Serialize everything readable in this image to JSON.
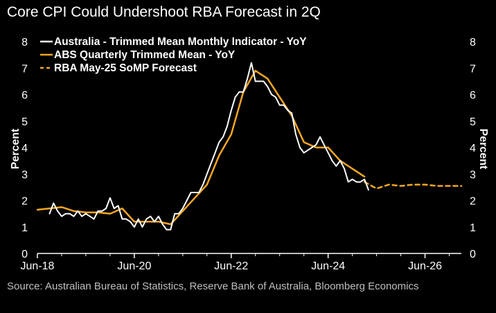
{
  "header": {
    "title": "Core CPI Could Undershoot RBA Forecast in 2Q"
  },
  "footer": {
    "source": "Source: Australian Bureau of Statistics, Reserve Bank of Australia, Bloomberg Economics"
  },
  "colors": {
    "background": "#000000",
    "monthly": "#ffffff",
    "quarterly": "#f5a623",
    "forecast": "#f5a623",
    "source_text": "#bfbfbf"
  },
  "chart_data": {
    "type": "line",
    "title": "Core CPI Could Undershoot RBA Forecast in 2Q",
    "ylabel_left": "Percent",
    "ylabel_right": "Percent",
    "xlim": [
      "2018-06",
      "2027-03"
    ],
    "ylim": [
      0,
      8
    ],
    "yticks": [
      0,
      1,
      2,
      3,
      4,
      5,
      6,
      7,
      8
    ],
    "xticks": [
      {
        "date": "2018-06",
        "label": "Jun-18"
      },
      {
        "date": "2020-06",
        "label": "Jun-20"
      },
      {
        "date": "2022-06",
        "label": "Jun-22"
      },
      {
        "date": "2024-06",
        "label": "Jun-24"
      },
      {
        "date": "2026-06",
        "label": "Jun-26"
      }
    ],
    "grid": false,
    "legend_position": "top-left",
    "series": [
      {
        "name": "Australia - Trimmed Mean Monthly Indicator - YoY",
        "style": "solid",
        "color": "#ffffff",
        "x": [
          "2018-09",
          "2018-10",
          "2018-11",
          "2018-12",
          "2019-01",
          "2019-02",
          "2019-03",
          "2019-04",
          "2019-05",
          "2019-06",
          "2019-07",
          "2019-08",
          "2019-09",
          "2019-10",
          "2019-11",
          "2019-12",
          "2020-01",
          "2020-02",
          "2020-03",
          "2020-04",
          "2020-05",
          "2020-06",
          "2020-07",
          "2020-08",
          "2020-09",
          "2020-10",
          "2020-11",
          "2020-12",
          "2021-01",
          "2021-02",
          "2021-03",
          "2021-04",
          "2021-05",
          "2021-06",
          "2021-07",
          "2021-08",
          "2021-09",
          "2021-10",
          "2021-11",
          "2021-12",
          "2022-01",
          "2022-02",
          "2022-03",
          "2022-04",
          "2022-05",
          "2022-06",
          "2022-07",
          "2022-08",
          "2022-09",
          "2022-10",
          "2022-11",
          "2022-12",
          "2023-01",
          "2023-02",
          "2023-03",
          "2023-04",
          "2023-05",
          "2023-06",
          "2023-07",
          "2023-08",
          "2023-09",
          "2023-10",
          "2023-11",
          "2023-12",
          "2024-01",
          "2024-02",
          "2024-03",
          "2024-04",
          "2024-05",
          "2024-06",
          "2024-07",
          "2024-08",
          "2024-09",
          "2024-10",
          "2024-11",
          "2024-12",
          "2025-01",
          "2025-02",
          "2025-03",
          "2025-04"
        ],
        "values": [
          1.5,
          1.9,
          1.6,
          1.4,
          1.5,
          1.5,
          1.4,
          1.6,
          1.4,
          1.5,
          1.4,
          1.3,
          1.6,
          1.6,
          1.7,
          2.1,
          1.7,
          1.8,
          1.3,
          1.3,
          1.2,
          1.0,
          1.3,
          1.0,
          1.3,
          1.4,
          1.2,
          1.4,
          1.1,
          0.9,
          0.9,
          1.5,
          1.5,
          1.7,
          2.0,
          2.3,
          2.3,
          2.3,
          2.6,
          3.0,
          3.4,
          3.8,
          4.2,
          4.4,
          4.8,
          5.4,
          5.9,
          6.1,
          6.1,
          6.6,
          7.2,
          6.5,
          6.5,
          6.5,
          6.3,
          6.0,
          5.9,
          5.6,
          5.6,
          5.4,
          5.3,
          4.5,
          4.0,
          3.8,
          3.9,
          4.0,
          4.1,
          4.4,
          4.1,
          3.8,
          3.5,
          3.3,
          3.5,
          3.2,
          2.7,
          2.8,
          2.7,
          2.7,
          2.8,
          2.4
        ]
      },
      {
        "name": "ABS Quarterly Trimmed Mean - YoY",
        "style": "solid",
        "color": "#f5a623",
        "x": [
          "2018-06",
          "2018-09",
          "2018-12",
          "2019-03",
          "2019-06",
          "2019-09",
          "2019-12",
          "2020-03",
          "2020-06",
          "2020-09",
          "2020-12",
          "2021-03",
          "2021-06",
          "2021-09",
          "2021-12",
          "2022-03",
          "2022-06",
          "2022-09",
          "2022-12",
          "2023-03",
          "2023-06",
          "2023-09",
          "2023-12",
          "2024-03",
          "2024-06",
          "2024-09",
          "2024-12",
          "2025-03"
        ],
        "values": [
          1.65,
          1.7,
          1.75,
          1.6,
          1.55,
          1.55,
          1.5,
          1.7,
          1.2,
          1.2,
          1.2,
          1.1,
          1.6,
          2.1,
          2.6,
          3.7,
          4.5,
          6.1,
          6.9,
          6.6,
          5.9,
          5.2,
          4.2,
          4.0,
          4.0,
          3.5,
          3.2,
          2.9
        ]
      },
      {
        "name": "RBA May-25 SoMP Forecast",
        "style": "dashed",
        "color": "#f5a623",
        "x": [
          "2025-03",
          "2025-06",
          "2025-09",
          "2025-12",
          "2026-03",
          "2026-06",
          "2026-09",
          "2026-12",
          "2027-03"
        ],
        "values": [
          2.7,
          2.45,
          2.6,
          2.55,
          2.6,
          2.6,
          2.55,
          2.55,
          2.55
        ]
      }
    ]
  }
}
